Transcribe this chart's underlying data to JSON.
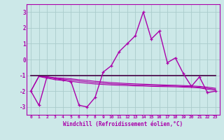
{
  "xlabel": "Windchill (Refroidissement éolien,°C)",
  "background_color": "#cce8e8",
  "grid_color": "#aacccc",
  "line_color": "#aa00aa",
  "dark_line_color": "#440044",
  "xlim": [
    -0.5,
    23.5
  ],
  "ylim": [
    -3.5,
    3.5
  ],
  "yticks": [
    -3,
    -2,
    -1,
    0,
    1,
    2,
    3
  ],
  "xticks": [
    0,
    1,
    2,
    3,
    4,
    5,
    6,
    7,
    8,
    9,
    10,
    11,
    12,
    13,
    14,
    15,
    16,
    17,
    18,
    19,
    20,
    21,
    22,
    23
  ],
  "main_series": [
    -2.0,
    -2.9,
    -1.1,
    -1.2,
    -1.3,
    -1.4,
    -2.9,
    -3.0,
    -2.4,
    -0.8,
    -0.4,
    0.5,
    1.0,
    1.5,
    3.0,
    1.3,
    1.8,
    -0.2,
    0.1,
    -0.9,
    -1.7,
    -1.1,
    -2.1,
    -2.0
  ],
  "flat_line": [
    -1.0,
    -1.0,
    -1.0,
    -1.0,
    -1.0,
    -1.0,
    -1.0,
    -1.0,
    -1.0,
    -1.0,
    -1.0,
    -1.0,
    -1.0,
    -1.0,
    -1.0,
    -1.0,
    -1.0,
    -1.0,
    -1.0,
    -1.0,
    -1.0,
    -1.0,
    -1.0,
    -1.0
  ],
  "trend1": [
    -2.0,
    -1.05,
    -1.1,
    -1.15,
    -1.18,
    -1.22,
    -1.28,
    -1.32,
    -1.38,
    -1.42,
    -1.46,
    -1.49,
    -1.52,
    -1.54,
    -1.56,
    -1.58,
    -1.6,
    -1.62,
    -1.63,
    -1.65,
    -1.67,
    -1.7,
    -1.75,
    -1.82
  ],
  "trend2": [
    -2.0,
    -1.08,
    -1.18,
    -1.28,
    -1.33,
    -1.38,
    -1.45,
    -1.5,
    -1.55,
    -1.58,
    -1.61,
    -1.63,
    -1.65,
    -1.67,
    -1.68,
    -1.7,
    -1.71,
    -1.72,
    -1.73,
    -1.75,
    -1.77,
    -1.8,
    -1.88,
    -1.95
  ],
  "trend3": [
    -2.0,
    -1.06,
    -1.13,
    -1.2,
    -1.24,
    -1.29,
    -1.36,
    -1.41,
    -1.46,
    -1.5,
    -1.54,
    -1.56,
    -1.58,
    -1.61,
    -1.62,
    -1.64,
    -1.65,
    -1.67,
    -1.68,
    -1.7,
    -1.72,
    -1.75,
    -1.82,
    -1.88
  ]
}
